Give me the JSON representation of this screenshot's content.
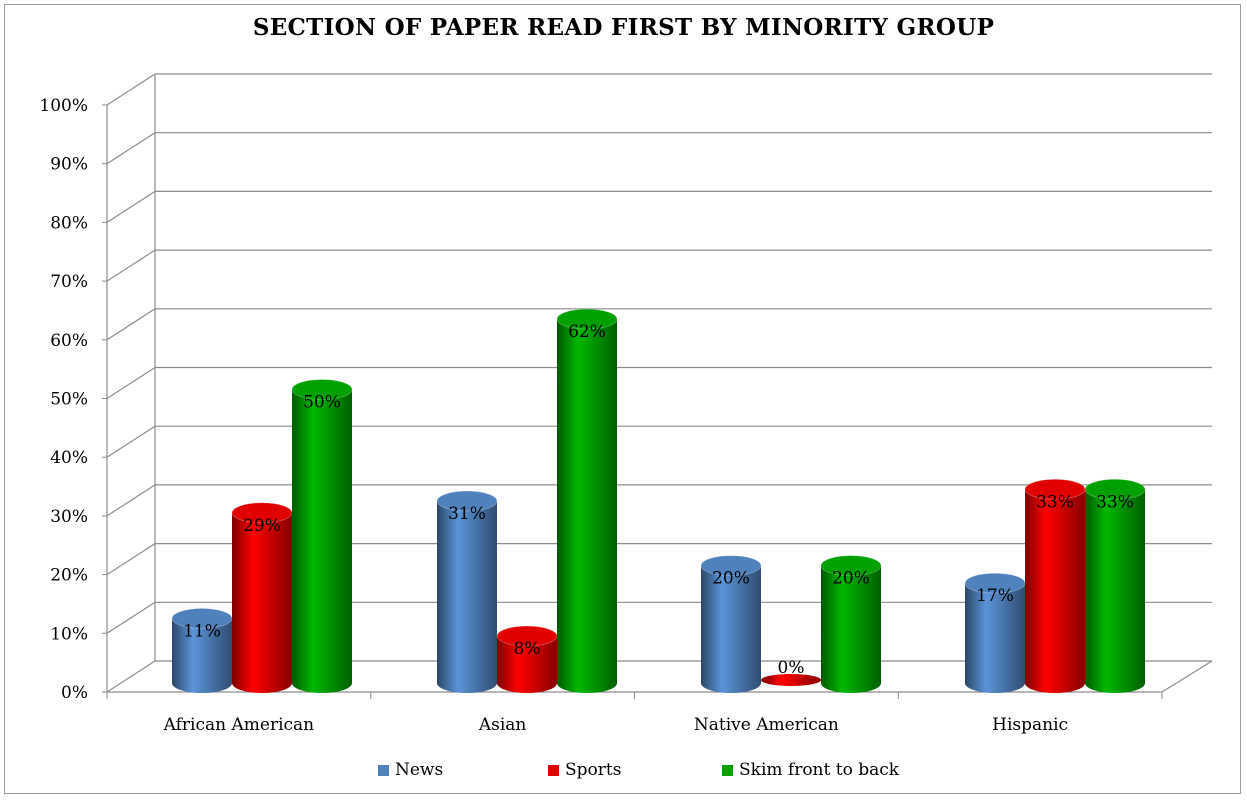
{
  "chart_data": {
    "type": "bar",
    "title": "SECTION OF PAPER READ FIRST BY MINORITY GROUP",
    "categories": [
      "African American",
      "Asian",
      "Native American",
      "Hispanic"
    ],
    "series": [
      {
        "name": "News",
        "values": [
          11,
          31,
          20,
          17
        ],
        "labels": [
          "11%",
          "31%",
          "20%",
          "17%"
        ],
        "color": "#4f81bd"
      },
      {
        "name": "Sports",
        "values": [
          29,
          8,
          0,
          33
        ],
        "labels": [
          "29%",
          "8%",
          "0%",
          "33%"
        ],
        "color": "#e00000"
      },
      {
        "name": "Skim front to back",
        "values": [
          50,
          62,
          20,
          33
        ],
        "labels": [
          "50%",
          "62%",
          "20%",
          "33%"
        ],
        "color": "#00a000"
      }
    ],
    "ylim": [
      0,
      100
    ],
    "yticks": [
      "0%",
      "10%",
      "20%",
      "30%",
      "40%",
      "50%",
      "60%",
      "70%",
      "80%",
      "90%",
      "100%"
    ],
    "style": "3d-cylinder",
    "grid": true,
    "legend_position": "bottom"
  }
}
